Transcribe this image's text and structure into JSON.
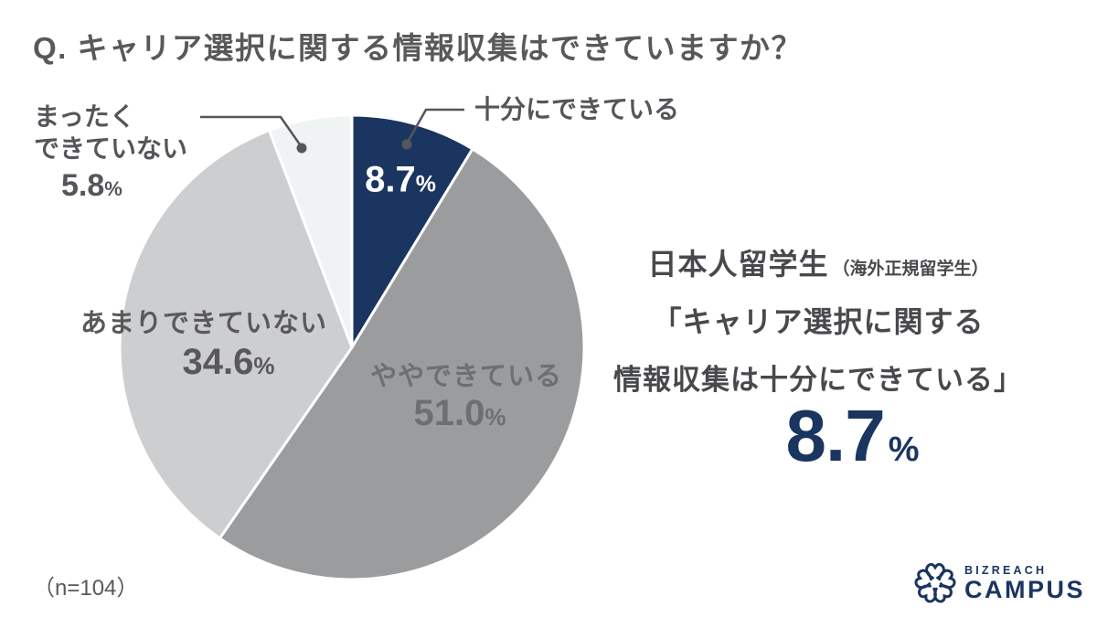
{
  "title": "Q. キャリア選択に関する情報収集はできていますか？",
  "sample_size": "（n=104）",
  "percent_symbol": "%",
  "colors": {
    "navy": "#1B3561",
    "gray": "#9B9C9E",
    "light_gray": "#CDCED0",
    "lightest_gray": "#F0F3F4",
    "text_dark": "#55565A",
    "text_mid": "#6E6F71"
  },
  "chart_data": {
    "type": "pie",
    "title": "Q. キャリア選択に関する情報収集はできていますか？",
    "sample_n": 104,
    "start_angle_deg": 0,
    "direction": "clockwise",
    "legend_position": "callout-labels",
    "slices": [
      {
        "id": "sufficient",
        "label": "十分にできている",
        "value": 8.7,
        "color": "#1B3561"
      },
      {
        "id": "somewhat",
        "label": "ややできている",
        "value": 51.0,
        "color": "#9B9C9E"
      },
      {
        "id": "not-much",
        "label": "あまりできていない",
        "value": 34.6,
        "color": "#CDCED0"
      },
      {
        "id": "none",
        "label": "まったくできていない",
        "value": 5.8,
        "color": "#F0F3F4"
      }
    ]
  },
  "labels": {
    "sufficient": "十分にできている",
    "sufficient_pct": "8.7",
    "somewhat": "ややできている",
    "somewhat_pct": "51.0",
    "not_much": "あまりできていない",
    "not_much_pct": "34.6",
    "none_line1": "まったく",
    "none_line2": "できていない",
    "none_pct": "5.8"
  },
  "highlight": {
    "line1_main": "日本人留学生",
    "line1_sub": "（海外正規留学生）",
    "line2": "「キャリア選択に関する",
    "line3": "情報収集は十分にできている」",
    "value": "8.7"
  },
  "logo": {
    "brand_top": "BIZREACH",
    "brand_bottom": "CAMPUS"
  }
}
